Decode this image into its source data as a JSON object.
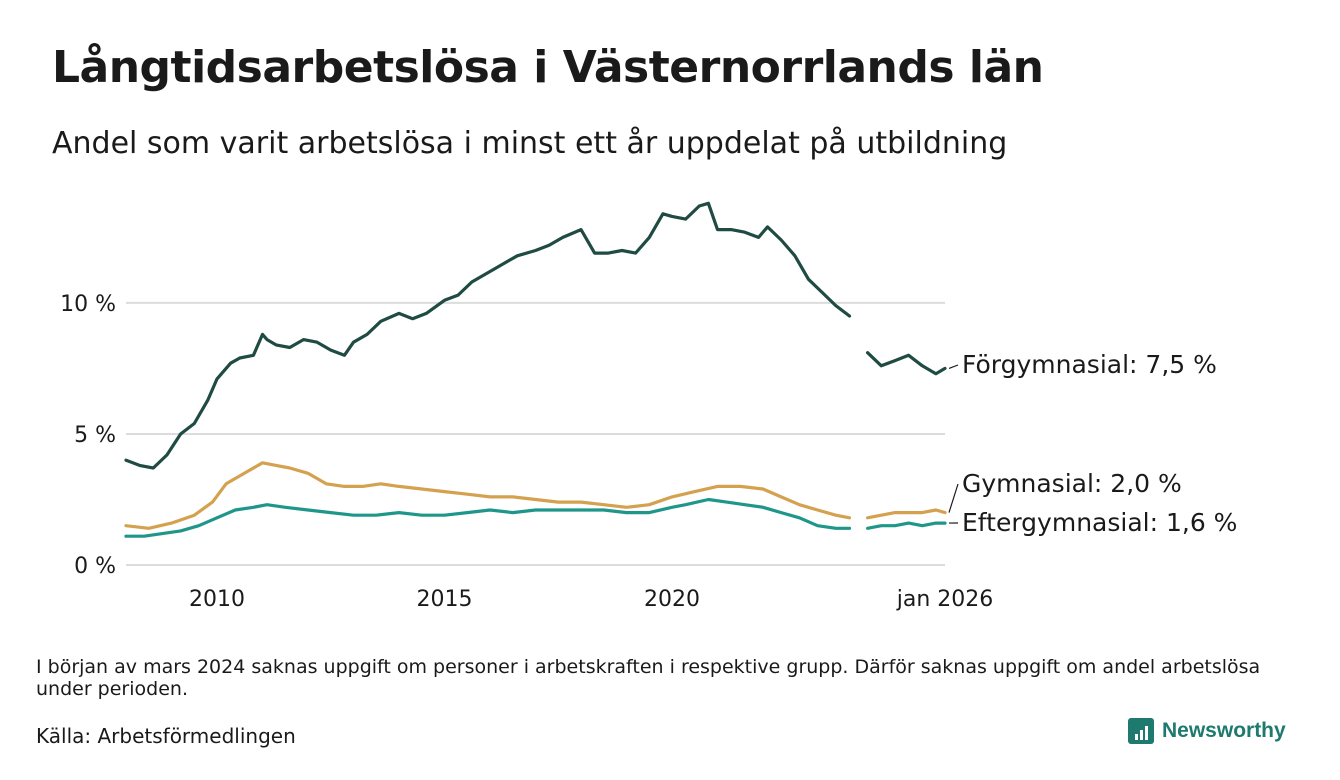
{
  "header": {
    "title": "Långtidsarbetslösa i Västernorrlands län",
    "subtitle": "Andel som varit arbetslösa i minst ett år uppdelat på utbildning"
  },
  "footer": {
    "note": "I början av mars 2024 saknas uppgift om personer i arbetskraften i respektive grupp. Därför saknas uppgift om andel arbetslösa under perioden.",
    "source": "Källa: Arbetsförmedlingen",
    "brand": "Newsworthy"
  },
  "chart_data": {
    "type": "line",
    "title": "Långtidsarbetslösa i Västernorrlands län",
    "subtitle": "Andel som varit arbetslösa i minst ett år uppdelat på utbildning",
    "xlabel": "",
    "ylabel": "",
    "x_range": [
      2008.0,
      2026.0
    ],
    "ylim": [
      0,
      14.5
    ],
    "y_ticks": [
      0,
      5,
      10
    ],
    "y_tick_labels": [
      "0 %",
      "5 %",
      "10 %"
    ],
    "x_ticks": [
      2010,
      2015,
      2020,
      2026.0
    ],
    "x_tick_labels": [
      "2010",
      "2015",
      "2020",
      "jan 2026"
    ],
    "grid": true,
    "gap": [
      2023.9,
      2024.3
    ],
    "series": [
      {
        "name": "Förgymnasial",
        "label": "Förgymnasial: 7,5 %",
        "color": "#1f4b43",
        "x": [
          2008.0,
          2008.3,
          2008.6,
          2008.9,
          2009.2,
          2009.5,
          2009.8,
          2010.0,
          2010.3,
          2010.5,
          2010.8,
          2011.0,
          2011.1,
          2011.3,
          2011.6,
          2011.9,
          2012.2,
          2012.5,
          2012.8,
          2013.0,
          2013.3,
          2013.6,
          2014.0,
          2014.3,
          2014.6,
          2015.0,
          2015.3,
          2015.6,
          2016.0,
          2016.3,
          2016.6,
          2017.0,
          2017.3,
          2017.6,
          2018.0,
          2018.3,
          2018.6,
          2018.9,
          2019.2,
          2019.5,
          2019.8,
          2020.0,
          2020.3,
          2020.6,
          2020.8,
          2021.0,
          2021.3,
          2021.6,
          2021.9,
          2022.1,
          2022.4,
          2022.7,
          2023.0,
          2023.3,
          2023.6,
          2023.9,
          2024.3,
          2024.6,
          2024.9,
          2025.2,
          2025.5,
          2025.8,
          2026.0
        ],
        "values": [
          4.0,
          3.8,
          3.7,
          4.2,
          5.0,
          5.4,
          6.3,
          7.1,
          7.7,
          7.9,
          8.0,
          8.8,
          8.6,
          8.4,
          8.3,
          8.6,
          8.5,
          8.2,
          8.0,
          8.5,
          8.8,
          9.3,
          9.6,
          9.4,
          9.6,
          10.1,
          10.3,
          10.8,
          11.2,
          11.5,
          11.8,
          12.0,
          12.2,
          12.5,
          12.8,
          11.9,
          11.9,
          12.0,
          11.9,
          12.5,
          13.4,
          13.3,
          13.2,
          13.7,
          13.8,
          12.8,
          12.8,
          12.7,
          12.5,
          12.9,
          12.4,
          11.8,
          10.9,
          10.4,
          9.9,
          9.5,
          8.1,
          7.6,
          7.8,
          8.0,
          7.6,
          7.3,
          7.5
        ]
      },
      {
        "name": "Gymnasial",
        "label": "Gymnasial: 2,0 %",
        "color": "#d4a14f",
        "x": [
          2008.0,
          2008.5,
          2009.0,
          2009.5,
          2009.9,
          2010.2,
          2010.5,
          2010.8,
          2011.0,
          2011.3,
          2011.6,
          2012.0,
          2012.4,
          2012.8,
          2013.2,
          2013.6,
          2014.0,
          2014.5,
          2015.0,
          2015.5,
          2016.0,
          2016.5,
          2017.0,
          2017.5,
          2018.0,
          2018.5,
          2019.0,
          2019.5,
          2020.0,
          2020.5,
          2021.0,
          2021.5,
          2022.0,
          2022.4,
          2022.8,
          2023.2,
          2023.6,
          2023.9,
          2024.3,
          2024.6,
          2024.9,
          2025.2,
          2025.5,
          2025.8,
          2026.0
        ],
        "values": [
          1.5,
          1.4,
          1.6,
          1.9,
          2.4,
          3.1,
          3.4,
          3.7,
          3.9,
          3.8,
          3.7,
          3.5,
          3.1,
          3.0,
          3.0,
          3.1,
          3.0,
          2.9,
          2.8,
          2.7,
          2.6,
          2.6,
          2.5,
          2.4,
          2.4,
          2.3,
          2.2,
          2.3,
          2.6,
          2.8,
          3.0,
          3.0,
          2.9,
          2.6,
          2.3,
          2.1,
          1.9,
          1.8,
          1.8,
          1.9,
          2.0,
          2.0,
          2.0,
          2.1,
          2.0
        ]
      },
      {
        "name": "Eftergymnasial",
        "label": "Eftergymnasial: 1,6 %",
        "color": "#1e978a",
        "x": [
          2008.0,
          2008.4,
          2008.8,
          2009.2,
          2009.6,
          2010.0,
          2010.4,
          2010.8,
          2011.1,
          2011.5,
          2012.0,
          2012.5,
          2013.0,
          2013.5,
          2014.0,
          2014.5,
          2015.0,
          2015.5,
          2016.0,
          2016.5,
          2017.0,
          2017.5,
          2018.0,
          2018.5,
          2019.0,
          2019.5,
          2020.0,
          2020.3,
          2020.8,
          2021.2,
          2021.6,
          2022.0,
          2022.4,
          2022.8,
          2023.2,
          2023.6,
          2023.9,
          2024.3,
          2024.6,
          2024.9,
          2025.2,
          2025.5,
          2025.8,
          2026.0
        ],
        "values": [
          1.1,
          1.1,
          1.2,
          1.3,
          1.5,
          1.8,
          2.1,
          2.2,
          2.3,
          2.2,
          2.1,
          2.0,
          1.9,
          1.9,
          2.0,
          1.9,
          1.9,
          2.0,
          2.1,
          2.0,
          2.1,
          2.1,
          2.1,
          2.1,
          2.0,
          2.0,
          2.2,
          2.3,
          2.5,
          2.4,
          2.3,
          2.2,
          2.0,
          1.8,
          1.5,
          1.4,
          1.4,
          1.4,
          1.5,
          1.5,
          1.6,
          1.5,
          1.6,
          1.6
        ]
      }
    ]
  }
}
